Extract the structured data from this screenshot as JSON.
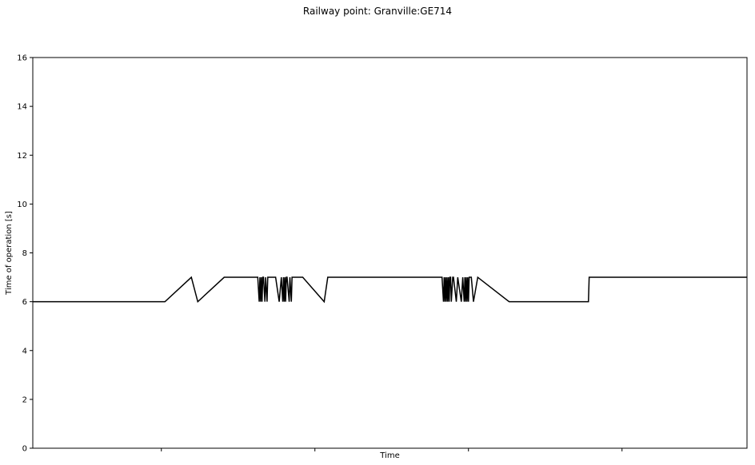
{
  "chart_data": {
    "type": "line",
    "title": "Railway point: Granville:GE714",
    "xlabel": "Time",
    "ylabel": "Time of operation [s]",
    "ylim": [
      0,
      16
    ],
    "yticks": [
      0,
      2,
      4,
      6,
      8,
      10,
      12,
      14,
      16
    ],
    "xlim": [
      0,
      100
    ],
    "xticks": [
      18,
      39.5,
      61,
      82.5
    ],
    "xtick_labels": [
      "",
      "",
      "",
      ""
    ],
    "grid": false,
    "legend": "none",
    "line_color": "#000000",
    "series": [
      {
        "x": [
          0,
          18.5,
          22.2,
          23.1,
          26.8,
          31.5,
          31.7,
          31.8,
          31.9,
          32.0,
          32.1,
          32.2,
          32.3,
          32.5,
          32.6,
          32.8,
          32.9,
          33.2,
          33.3,
          34.0,
          34.5,
          34.8,
          35.0,
          35.1,
          35.2,
          35.3,
          35.4,
          35.5,
          35.6,
          35.9,
          36.0,
          36.2,
          36.3,
          36.4,
          37.0,
          37.8,
          40.8,
          41.3,
          57.3,
          57.5,
          57.6,
          57.7,
          57.8,
          57.9,
          58.0,
          58.1,
          58.2,
          58.3,
          58.4,
          58.5,
          58.6,
          58.8,
          58.9,
          59.3,
          59.5,
          60.0,
          60.2,
          60.4,
          60.5,
          60.6,
          60.7,
          60.8,
          60.9,
          61.0,
          61.1,
          61.3,
          61.4,
          61.7,
          62.3,
          66.7,
          77.8,
          77.9,
          100
        ],
        "y": [
          6,
          6,
          7,
          6,
          7,
          7,
          6,
          7,
          6,
          7,
          6,
          7,
          7,
          6,
          7,
          6,
          7,
          7,
          7,
          7,
          6,
          7,
          6,
          7,
          6,
          7,
          6,
          7,
          7,
          6,
          7,
          6,
          7,
          7,
          7,
          7,
          6,
          7,
          7,
          6,
          7,
          6,
          7,
          6,
          7,
          6,
          7,
          6,
          7,
          7,
          6,
          7,
          7,
          6,
          7,
          6,
          7,
          6,
          7,
          6,
          7,
          6,
          7,
          6,
          7,
          7,
          7,
          6,
          7,
          6,
          6,
          7,
          7
        ]
      }
    ]
  }
}
